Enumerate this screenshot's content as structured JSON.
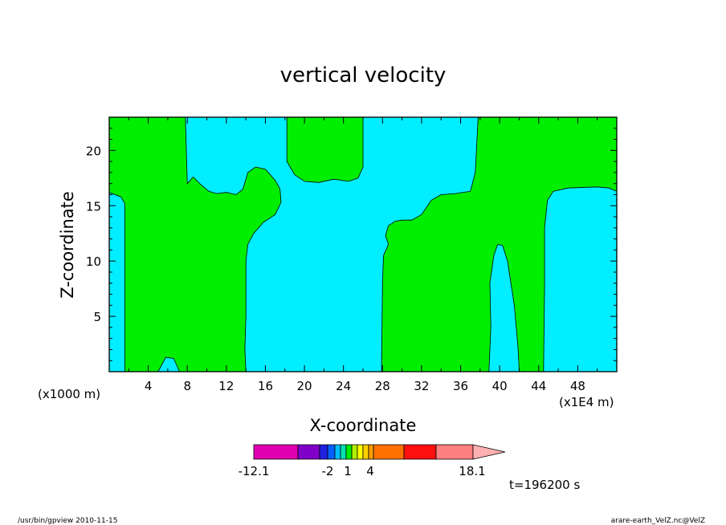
{
  "chart_data": {
    "type": "heatmap",
    "title": "vertical velocity",
    "xlabel": "X-coordinate",
    "ylabel": "Z-coordinate",
    "x_unit_label": "(x1E4 m)",
    "y_unit_label": "(x1000 m)",
    "xlim": [
      0,
      52
    ],
    "ylim": [
      0,
      23
    ],
    "x_ticks": [
      "4",
      "8",
      "12",
      "16",
      "20",
      "24",
      "28",
      "32",
      "36",
      "40",
      "44",
      "48"
    ],
    "y_ticks": [
      "5",
      "10",
      "15",
      "20"
    ],
    "fill_colors": {
      "positive": "#00ee00",
      "negative": "#00eeff"
    },
    "regions": [
      {
        "sign": "negative",
        "polygon": [
          [
            0,
            0
          ],
          [
            1.6,
            0
          ],
          [
            1.6,
            15.2
          ],
          [
            1.2,
            15.8
          ],
          [
            0,
            16.2
          ]
        ]
      },
      {
        "sign": "negative",
        "polygon": [
          [
            5,
            0
          ],
          [
            5.8,
            1.3
          ],
          [
            6.6,
            1.2
          ],
          [
            7,
            0.4
          ],
          [
            7.2,
            0
          ]
        ]
      },
      {
        "sign": "negative",
        "polygon": [
          [
            7.8,
            23
          ],
          [
            8,
            17
          ],
          [
            8.6,
            17.6
          ],
          [
            9.4,
            16.9
          ],
          [
            10.2,
            16.3
          ],
          [
            11,
            16.1
          ],
          [
            12,
            16.2
          ],
          [
            13,
            16
          ],
          [
            13.7,
            16.5
          ],
          [
            14.2,
            18
          ],
          [
            15,
            18.5
          ],
          [
            16,
            18.3
          ],
          [
            17,
            17.3
          ],
          [
            17.5,
            16.5
          ],
          [
            17.6,
            15.3
          ],
          [
            17,
            14.2
          ],
          [
            15.8,
            13.5
          ],
          [
            14.8,
            12.5
          ],
          [
            14.2,
            11.5
          ],
          [
            14,
            10
          ],
          [
            14,
            5
          ],
          [
            13.9,
            2
          ],
          [
            14,
            0
          ],
          [
            27.9,
            0
          ],
          [
            28,
            8
          ],
          [
            28.1,
            10.5
          ],
          [
            28.6,
            11.5
          ],
          [
            28.3,
            12.3
          ],
          [
            28.6,
            13.2
          ],
          [
            29.3,
            13.6
          ],
          [
            30,
            13.7
          ],
          [
            31,
            13.7
          ],
          [
            32,
            14.2
          ],
          [
            33,
            15.5
          ],
          [
            34,
            16
          ],
          [
            35.5,
            16.1
          ],
          [
            37,
            16.3
          ],
          [
            37.5,
            18
          ],
          [
            37.8,
            23
          ],
          [
            26,
            23
          ],
          [
            26,
            18.5
          ],
          [
            25.5,
            17.5
          ],
          [
            24.5,
            17.2
          ],
          [
            23,
            17.4
          ],
          [
            21.5,
            17.1
          ],
          [
            20,
            17.2
          ],
          [
            19,
            17.8
          ],
          [
            18.2,
            19
          ],
          [
            18.2,
            23
          ]
        ]
      },
      {
        "sign": "negative",
        "polygon": [
          [
            38.9,
            0
          ],
          [
            39.1,
            4
          ],
          [
            39,
            8
          ],
          [
            39.4,
            10.5
          ],
          [
            39.8,
            11.5
          ],
          [
            40.3,
            11.4
          ],
          [
            40.8,
            10
          ],
          [
            41.5,
            6
          ],
          [
            41.9,
            2
          ],
          [
            42,
            0
          ]
        ]
      },
      {
        "sign": "negative",
        "polygon": [
          [
            44.5,
            0
          ],
          [
            44.6,
            8
          ],
          [
            44.6,
            13
          ],
          [
            44.9,
            15.5
          ],
          [
            45.5,
            16.3
          ],
          [
            47,
            16.6
          ],
          [
            50,
            16.7
          ],
          [
            51.2,
            16.6
          ],
          [
            52,
            16.3
          ],
          [
            52,
            0
          ]
        ]
      }
    ],
    "colorbar": {
      "colors": [
        "#e000b0",
        "#8000c8",
        "#2020e0",
        "#0060ff",
        "#00c0ff",
        "#00e0b0",
        "#00ee00",
        "#b0f000",
        "#ffff00",
        "#ffd000",
        "#ffa000",
        "#ff7000",
        "#ff1010",
        "#ff8080",
        "#ffb0b0"
      ],
      "tick_labels": [
        "-12.1",
        "-2",
        "1",
        "4",
        "18.1"
      ]
    },
    "time_label": "t=196200 s"
  },
  "footer": {
    "left": "/usr/bin/gpview   2010-11-15",
    "right": "arare-earth_VelZ.nc@VelZ"
  }
}
